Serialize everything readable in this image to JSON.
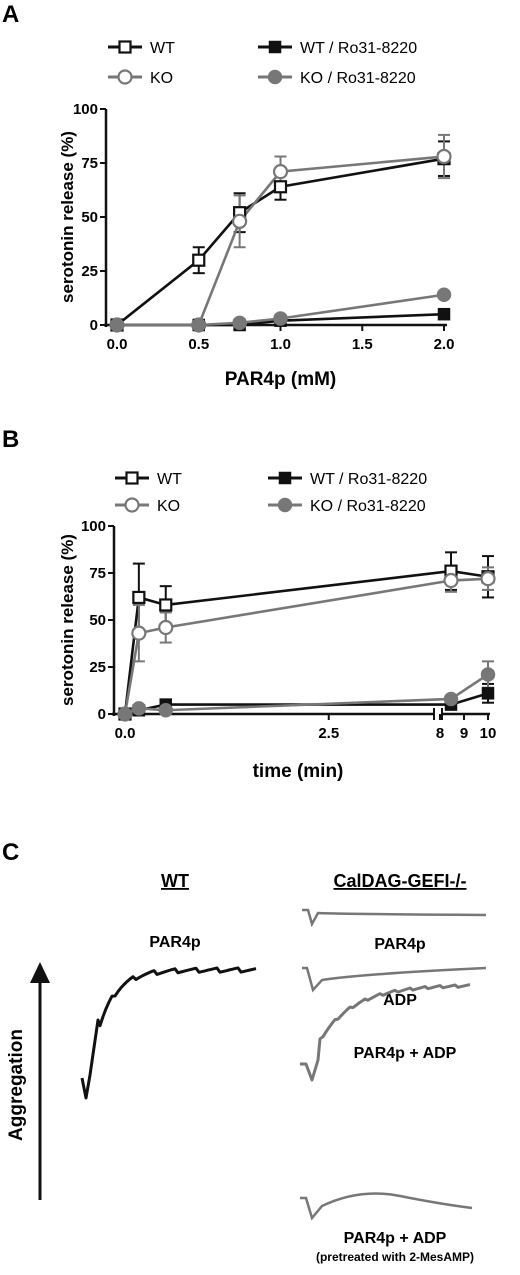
{
  "panels": {
    "a": "A",
    "b": "B",
    "c": "C"
  },
  "chart_data": [
    {
      "type": "line",
      "panel": "A",
      "xlabel": "PAR4p (mM)",
      "ylabel": "serotonin release (%)",
      "xlim": [
        0,
        2
      ],
      "ylim": [
        0,
        100
      ],
      "xticks": [
        "0.0",
        "0.5",
        "1.0",
        "1.5",
        "2.0"
      ],
      "yticks": [
        "0",
        "25",
        "50",
        "75",
        "100"
      ],
      "grid": false,
      "legend_position": "top",
      "series": [
        {
          "name": "WT",
          "marker": "open-square",
          "color": "#111111",
          "x": [
            0,
            0.5,
            0.75,
            1.0,
            2.0
          ],
          "y": [
            0,
            30,
            52,
            64,
            77
          ],
          "err": [
            0,
            6,
            9,
            6,
            8
          ]
        },
        {
          "name": "KO",
          "marker": "open-circle",
          "color": "#777777",
          "x": [
            0,
            0.5,
            0.75,
            1.0,
            2.0
          ],
          "y": [
            0,
            0,
            48,
            71,
            78
          ],
          "err": [
            0,
            0,
            12,
            7,
            10
          ]
        },
        {
          "name": "WT / Ro31-8220",
          "marker": "filled-square",
          "color": "#111111",
          "x": [
            0,
            0.5,
            0.75,
            1.0,
            2.0
          ],
          "y": [
            0,
            0,
            0,
            2,
            5
          ],
          "err": [
            0,
            0,
            0,
            0,
            0
          ]
        },
        {
          "name": "KO / Ro31-8220",
          "marker": "filled-circle",
          "color": "#777777",
          "x": [
            0,
            0.5,
            0.75,
            1.0,
            2.0
          ],
          "y": [
            0,
            0,
            1,
            3,
            14
          ],
          "err": [
            0,
            0,
            0,
            0,
            0
          ]
        }
      ]
    },
    {
      "type": "line",
      "panel": "B",
      "xlabel": "time (min)",
      "ylabel": "serotonin release (%)",
      "x_axis_break": true,
      "xlim": [
        0,
        10
      ],
      "ylim": [
        0,
        100
      ],
      "xticks": [
        "0.0",
        "2.5",
        "8",
        "9",
        "10"
      ],
      "yticks": [
        "0",
        "25",
        "50",
        "75",
        "100"
      ],
      "grid": false,
      "legend_position": "top",
      "series": [
        {
          "name": "WT",
          "marker": "open-square",
          "color": "#111111",
          "x": [
            0,
            0.17,
            0.5,
            4,
            10
          ],
          "y": [
            0,
            62,
            58,
            76,
            73
          ],
          "err": [
            0,
            18,
            10,
            10,
            11
          ]
        },
        {
          "name": "KO",
          "marker": "open-circle",
          "color": "#777777",
          "x": [
            0,
            0.17,
            0.5,
            4,
            10
          ],
          "y": [
            0,
            43,
            46,
            71,
            72
          ],
          "err": [
            0,
            15,
            8,
            6,
            6
          ]
        },
        {
          "name": "WT / Ro31-8220",
          "marker": "filled-square",
          "color": "#111111",
          "x": [
            0,
            0.17,
            0.5,
            4,
            10
          ],
          "y": [
            0,
            2,
            5,
            5,
            11
          ],
          "err": [
            0,
            0,
            0,
            0,
            5
          ]
        },
        {
          "name": "KO / Ro31-8220",
          "marker": "filled-circle",
          "color": "#777777",
          "x": [
            0,
            0.17,
            0.5,
            4,
            10
          ],
          "y": [
            0,
            3,
            2,
            8,
            21
          ],
          "err": [
            0,
            0,
            0,
            0,
            7
          ]
        }
      ]
    },
    {
      "type": "line",
      "panel": "C",
      "ylabel": "Aggregation",
      "groups": [
        {
          "header": "WT",
          "traces": [
            {
              "label": "PAR4p",
              "sublabel": "",
              "color": "#111111"
            }
          ]
        },
        {
          "header": "CalDAG-GEFI-/-",
          "traces": [
            {
              "label": "PAR4p",
              "sublabel": "",
              "color": "#777777"
            },
            {
              "label": "ADP",
              "sublabel": "",
              "color": "#777777"
            },
            {
              "label": "PAR4p + ADP",
              "sublabel": "",
              "color": "#777777"
            },
            {
              "label": "PAR4p + ADP",
              "sublabel": "(pretreated with 2-MesAMP)",
              "color": "#777777"
            }
          ]
        }
      ]
    }
  ]
}
